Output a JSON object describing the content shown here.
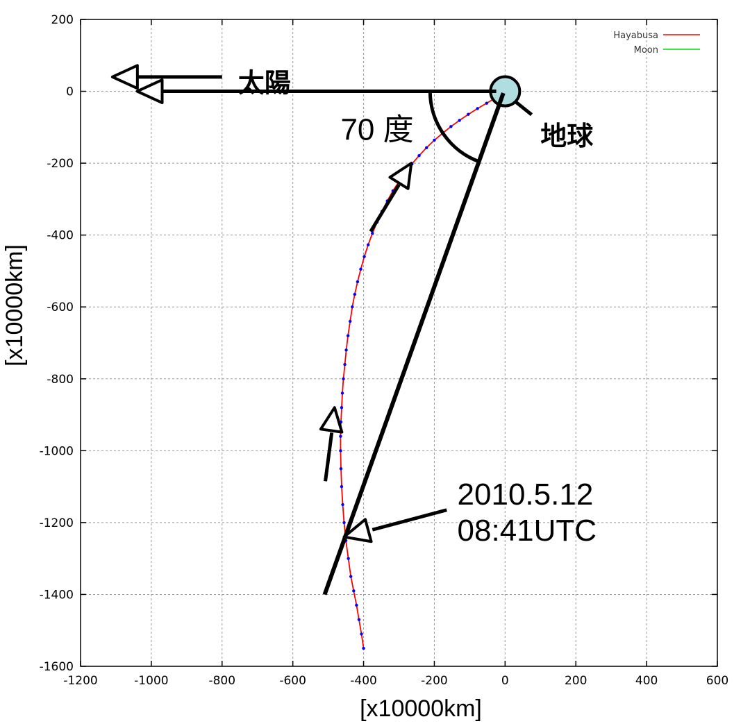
{
  "chart_data": {
    "type": "line",
    "title": "",
    "xlabel": "[x10000km]",
    "ylabel": "[x10000km]",
    "xlim": [
      -1200,
      600
    ],
    "ylim": [
      -1600,
      200
    ],
    "xticks": [
      -1200,
      -1000,
      -800,
      -600,
      -400,
      -200,
      0,
      200,
      400,
      600
    ],
    "yticks": [
      200,
      0,
      -200,
      -400,
      -600,
      -800,
      -1000,
      -1200,
      -1400,
      -1600
    ],
    "grid": true,
    "legend_position": "top-right",
    "series": [
      {
        "name": "Hayabusa",
        "color": "#ff0000",
        "marker_color": "#0000ff",
        "x": [
          -400,
          -406,
          -413,
          -420,
          -428,
          -436,
          -443,
          -450,
          -455,
          -459,
          -462,
          -464,
          -465,
          -465,
          -464,
          -462,
          -460,
          -457,
          -453,
          -449,
          -444,
          -438,
          -432,
          -425,
          -417,
          -408,
          -398,
          -387,
          -375,
          -362,
          -348,
          -333,
          -317,
          -300,
          -282,
          -263,
          -243,
          -222,
          -200,
          -177,
          -153,
          -129,
          -104,
          -78,
          -52,
          -26,
          -5
        ],
        "y": [
          -1550,
          -1510,
          -1470,
          -1430,
          -1390,
          -1350,
          -1300,
          -1250,
          -1200,
          -1150,
          -1100,
          -1050,
          -1000,
          -960,
          -920,
          -880,
          -840,
          -800,
          -760,
          -720,
          -680,
          -640,
          -600,
          -565,
          -530,
          -495,
          -460,
          -427,
          -395,
          -364,
          -334,
          -305,
          -277,
          -251,
          -226,
          -202,
          -179,
          -157,
          -136,
          -117,
          -98,
          -81,
          -64,
          -48,
          -33,
          -18,
          -5
        ]
      },
      {
        "name": "Moon",
        "color": "#00dd00",
        "x": [
          -30,
          -33,
          -30,
          -20,
          -5
        ],
        "y": [
          -25,
          -5,
          15,
          28,
          30
        ]
      }
    ],
    "annotations": {
      "sun": "太陽",
      "earth": "地球",
      "angle": "70 度",
      "date_line1": "2010.5.12",
      "date_line2": "08:41UTC"
    },
    "colors": {
      "earth_fill": "#b0dde0",
      "grid": "#999999",
      "annotation": "#000000"
    }
  }
}
